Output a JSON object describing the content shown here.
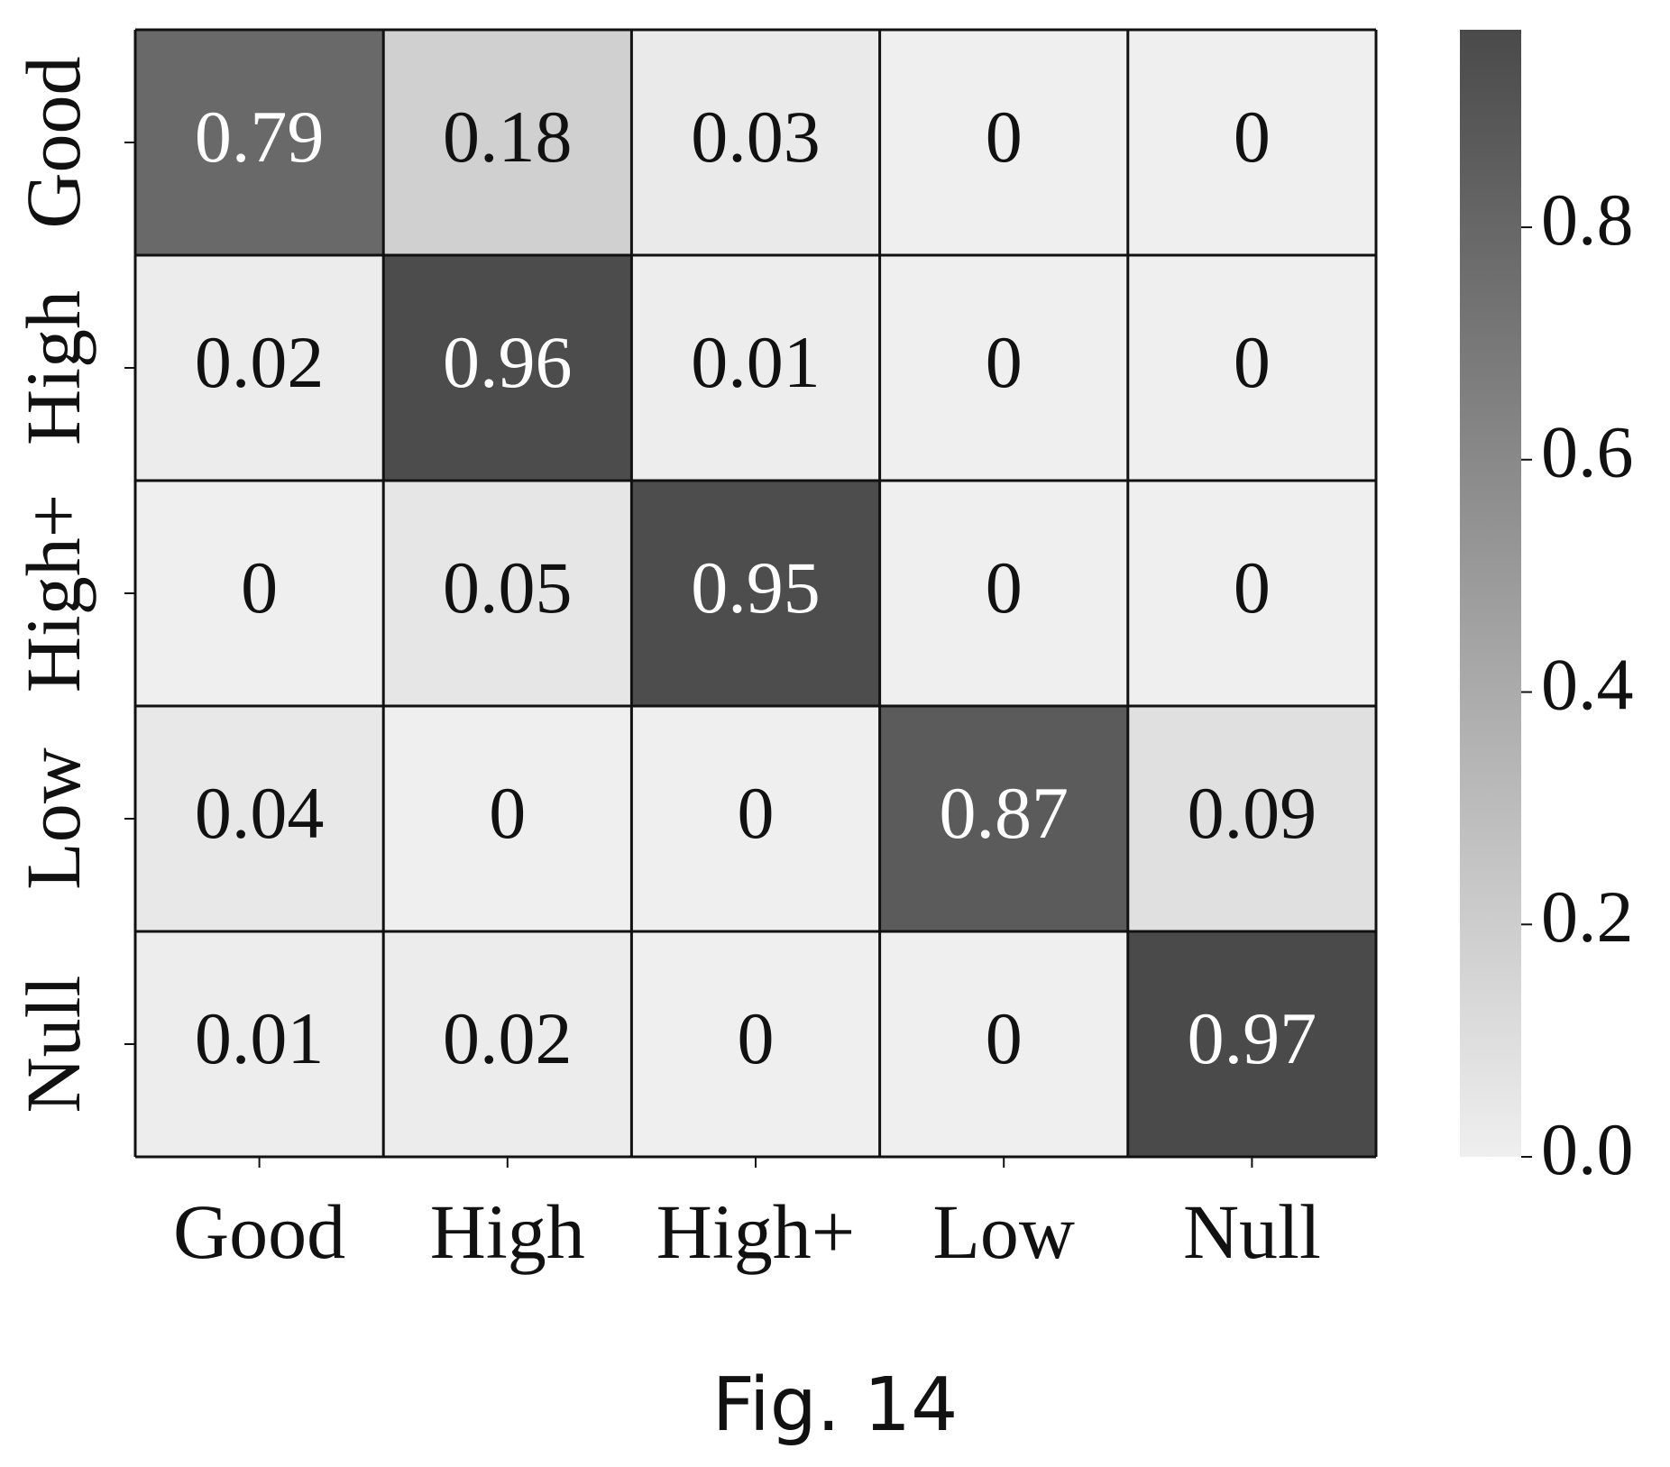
{
  "chart_data": {
    "type": "heatmap",
    "title": "",
    "xlabel": "",
    "ylabel": "",
    "x_categories": [
      "Good",
      "High",
      "High+",
      "Low",
      "Null"
    ],
    "y_categories": [
      "Good",
      "High",
      "High+",
      "Low",
      "Null"
    ],
    "values": [
      [
        0.79,
        0.18,
        0.03,
        0,
        0
      ],
      [
        0.02,
        0.96,
        0.01,
        0,
        0
      ],
      [
        0,
        0.05,
        0.95,
        0,
        0
      ],
      [
        0.04,
        0,
        0,
        0.87,
        0.09
      ],
      [
        0.01,
        0.02,
        0,
        0,
        0.97
      ]
    ],
    "cell_labels": [
      [
        "0.79",
        "0.18",
        "0.03",
        "0",
        "0"
      ],
      [
        "0.02",
        "0.96",
        "0.01",
        "0",
        "0"
      ],
      [
        "0",
        "0.05",
        "0.95",
        "0",
        "0"
      ],
      [
        "0.04",
        "0",
        "0",
        "0.87",
        "0.09"
      ],
      [
        "0.01",
        "0.02",
        "0",
        "0",
        "0.97"
      ]
    ],
    "colorbar": {
      "range": [
        0,
        0.97
      ],
      "ticks": [
        0.0,
        0.2,
        0.4,
        0.6,
        0.8
      ],
      "tick_labels": [
        "0.0",
        "0.2",
        "0.4",
        "0.6",
        "0.8"
      ],
      "placement": "right"
    },
    "colors": {
      "low": "#efefef",
      "high": "#4a4a4a",
      "grid": "#111111",
      "text_dark": "#111111",
      "text_light": "#ffffff"
    }
  },
  "caption": "Fig. 14"
}
